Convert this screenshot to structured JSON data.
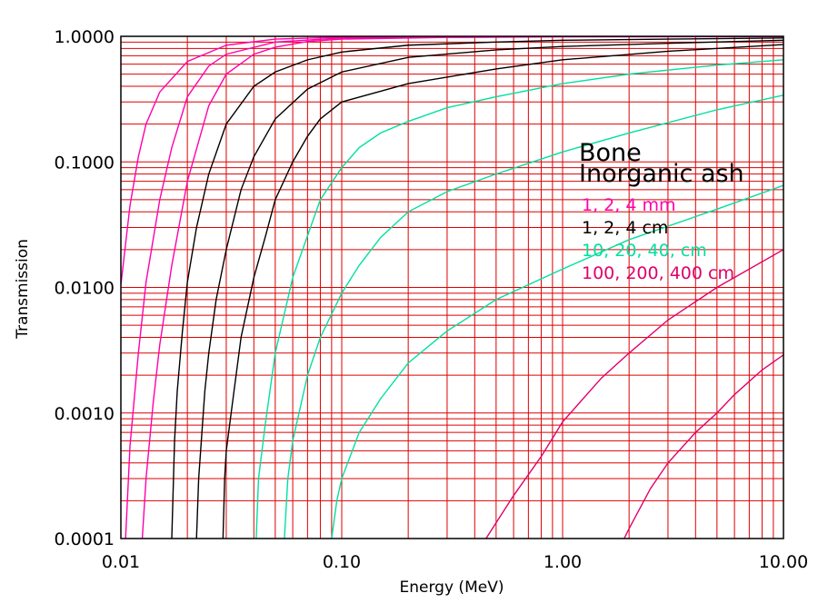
{
  "chart_data": {
    "type": "line",
    "xlabel": "Energy (MeV)",
    "ylabel": "Transmission",
    "x_scale": "log",
    "y_scale": "log",
    "xlim": [
      0.01,
      10.0
    ],
    "ylim": [
      0.0001,
      1.0
    ],
    "x_ticks": [
      {
        "value": 0.01,
        "label": "0.01"
      },
      {
        "value": 0.1,
        "label": "0.10"
      },
      {
        "value": 1.0,
        "label": "1.00"
      },
      {
        "value": 10.0,
        "label": "10.00"
      }
    ],
    "y_ticks": [
      {
        "value": 1.0,
        "label": "1.0000"
      },
      {
        "value": 0.1,
        "label": "0.1000"
      },
      {
        "value": 0.01,
        "label": "0.0100"
      },
      {
        "value": 0.001,
        "label": "0.0010"
      },
      {
        "value": 0.0001,
        "label": "0.0001"
      }
    ],
    "grid": true,
    "grid_color": "#dd0000",
    "legend_title_lines": [
      "Bone",
      "Inorganic ash"
    ],
    "legend_placement": "right",
    "groups": [
      {
        "label": "1, 2, 4 mm",
        "color": "#ff00aa"
      },
      {
        "label": "1, 2, 4 cm",
        "color": "#000000"
      },
      {
        "label": "10, 20, 40, cm",
        "color": "#00e0a0"
      },
      {
        "label": "100, 200, 400 cm",
        "color": "#e0006a"
      }
    ],
    "series": [
      {
        "group": 0,
        "points": [
          [
            0.01,
            0.0105
          ],
          [
            0.011,
            0.045
          ],
          [
            0.012,
            0.11
          ],
          [
            0.013,
            0.2
          ],
          [
            0.015,
            0.36
          ],
          [
            0.02,
            0.63
          ],
          [
            0.03,
            0.85
          ],
          [
            0.05,
            0.95
          ],
          [
            0.1,
            0.985
          ],
          [
            0.3,
            0.995
          ],
          [
            1.0,
            0.997
          ],
          [
            10.0,
            0.999
          ]
        ]
      },
      {
        "group": 0,
        "points": [
          [
            0.0105,
            0.0001
          ],
          [
            0.011,
            0.00055
          ],
          [
            0.012,
            0.003
          ],
          [
            0.013,
            0.011
          ],
          [
            0.015,
            0.05
          ],
          [
            0.017,
            0.13
          ],
          [
            0.02,
            0.33
          ],
          [
            0.025,
            0.58
          ],
          [
            0.03,
            0.72
          ],
          [
            0.05,
            0.9
          ],
          [
            0.1,
            0.97
          ],
          [
            0.3,
            0.99
          ],
          [
            1.0,
            0.995
          ],
          [
            10.0,
            0.998
          ]
        ]
      },
      {
        "group": 0,
        "points": [
          [
            0.0125,
            0.0001
          ],
          [
            0.013,
            0.0003
          ],
          [
            0.014,
            0.0012
          ],
          [
            0.015,
            0.0035
          ],
          [
            0.017,
            0.015
          ],
          [
            0.02,
            0.07
          ],
          [
            0.025,
            0.28
          ],
          [
            0.03,
            0.5
          ],
          [
            0.04,
            0.72
          ],
          [
            0.05,
            0.82
          ],
          [
            0.07,
            0.91
          ],
          [
            0.1,
            0.95
          ],
          [
            0.3,
            0.98
          ],
          [
            1.0,
            0.99
          ],
          [
            10.0,
            0.995
          ]
        ]
      },
      {
        "group": 1,
        "points": [
          [
            0.017,
            0.0001
          ],
          [
            0.0175,
            0.0006
          ],
          [
            0.018,
            0.0015
          ],
          [
            0.019,
            0.0045
          ],
          [
            0.02,
            0.011
          ],
          [
            0.022,
            0.03
          ],
          [
            0.025,
            0.08
          ],
          [
            0.03,
            0.2
          ],
          [
            0.04,
            0.4
          ],
          [
            0.05,
            0.52
          ],
          [
            0.07,
            0.65
          ],
          [
            0.1,
            0.75
          ],
          [
            0.2,
            0.85
          ],
          [
            0.5,
            0.9
          ],
          [
            1.0,
            0.93
          ],
          [
            3.0,
            0.95
          ],
          [
            10.0,
            0.97
          ]
        ]
      },
      {
        "group": 1,
        "points": [
          [
            0.022,
            0.0001
          ],
          [
            0.0225,
            0.0003
          ],
          [
            0.024,
            0.0015
          ],
          [
            0.025,
            0.003
          ],
          [
            0.027,
            0.008
          ],
          [
            0.03,
            0.02
          ],
          [
            0.035,
            0.06
          ],
          [
            0.04,
            0.11
          ],
          [
            0.05,
            0.22
          ],
          [
            0.07,
            0.38
          ],
          [
            0.1,
            0.52
          ],
          [
            0.2,
            0.68
          ],
          [
            0.5,
            0.78
          ],
          [
            1.0,
            0.83
          ],
          [
            3.0,
            0.88
          ],
          [
            10.0,
            0.93
          ]
        ]
      },
      {
        "group": 1,
        "points": [
          [
            0.029,
            0.0001
          ],
          [
            0.0295,
            0.0003
          ],
          [
            0.03,
            0.0005
          ],
          [
            0.032,
            0.0012
          ],
          [
            0.035,
            0.004
          ],
          [
            0.04,
            0.012
          ],
          [
            0.045,
            0.025
          ],
          [
            0.05,
            0.05
          ],
          [
            0.06,
            0.1
          ],
          [
            0.07,
            0.16
          ],
          [
            0.08,
            0.22
          ],
          [
            0.1,
            0.3
          ],
          [
            0.2,
            0.42
          ],
          [
            0.5,
            0.55
          ],
          [
            1.0,
            0.65
          ],
          [
            3.0,
            0.76
          ],
          [
            10.0,
            0.86
          ]
        ]
      },
      {
        "group": 2,
        "points": [
          [
            0.041,
            0.0001
          ],
          [
            0.042,
            0.0003
          ],
          [
            0.045,
            0.0008
          ],
          [
            0.05,
            0.003
          ],
          [
            0.06,
            0.012
          ],
          [
            0.08,
            0.05
          ],
          [
            0.1,
            0.09
          ],
          [
            0.12,
            0.13
          ],
          [
            0.15,
            0.17
          ],
          [
            0.2,
            0.21
          ],
          [
            0.3,
            0.27
          ],
          [
            0.5,
            0.33
          ],
          [
            1.0,
            0.42
          ],
          [
            2.0,
            0.5
          ],
          [
            5.0,
            0.59
          ],
          [
            10.0,
            0.65
          ]
        ]
      },
      {
        "group": 2,
        "points": [
          [
            0.055,
            0.0001
          ],
          [
            0.057,
            0.0003
          ],
          [
            0.06,
            0.0006
          ],
          [
            0.07,
            0.002
          ],
          [
            0.08,
            0.004
          ],
          [
            0.1,
            0.009
          ],
          [
            0.12,
            0.015
          ],
          [
            0.15,
            0.025
          ],
          [
            0.2,
            0.04
          ],
          [
            0.3,
            0.058
          ],
          [
            0.5,
            0.08
          ],
          [
            1.0,
            0.12
          ],
          [
            2.0,
            0.17
          ],
          [
            5.0,
            0.26
          ],
          [
            10.0,
            0.34
          ]
        ]
      },
      {
        "group": 2,
        "points": [
          [
            0.09,
            0.0001
          ],
          [
            0.095,
            0.0002
          ],
          [
            0.1,
            0.0003
          ],
          [
            0.12,
            0.0007
          ],
          [
            0.15,
            0.0013
          ],
          [
            0.2,
            0.0025
          ],
          [
            0.3,
            0.0045
          ],
          [
            0.5,
            0.008
          ],
          [
            1.0,
            0.014
          ],
          [
            2.0,
            0.024
          ],
          [
            5.0,
            0.042
          ],
          [
            10.0,
            0.065
          ]
        ]
      },
      {
        "group": 3,
        "points": [
          [
            0.45,
            0.0001
          ],
          [
            0.6,
            0.00022
          ],
          [
            0.8,
            0.00045
          ],
          [
            1.0,
            0.00085
          ],
          [
            1.5,
            0.0019
          ],
          [
            2.0,
            0.003
          ],
          [
            3.0,
            0.0055
          ],
          [
            5.0,
            0.01
          ],
          [
            10.0,
            0.02
          ]
        ]
      },
      {
        "group": 3,
        "points": [
          [
            1.9,
            0.0001
          ],
          [
            2.0,
            0.00012
          ],
          [
            2.5,
            0.00025
          ],
          [
            3.0,
            0.0004
          ],
          [
            4.0,
            0.0007
          ],
          [
            5.0,
            0.001
          ],
          [
            6.0,
            0.0014
          ],
          [
            8.0,
            0.0022
          ],
          [
            10.0,
            0.0029
          ]
        ]
      }
    ]
  }
}
